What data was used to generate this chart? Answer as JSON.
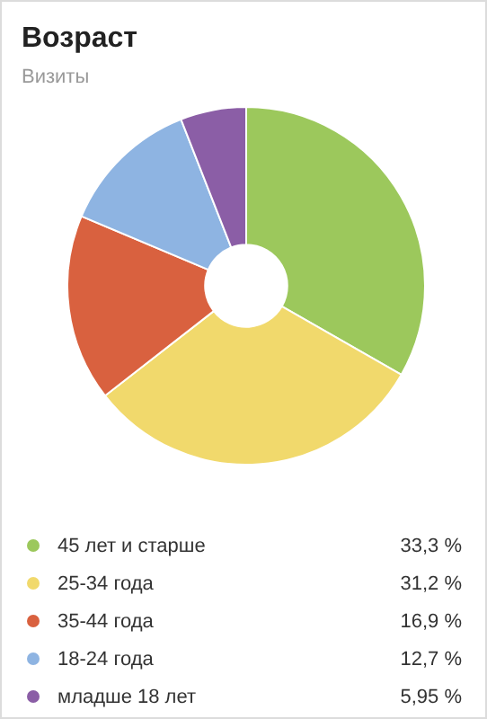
{
  "chart_data": {
    "type": "donut",
    "title": "Возраст",
    "subtitle": "Визиты",
    "categories": [
      "45 лет и старше",
      "25-34 года",
      "35-44 года",
      "18-24 года",
      "младше 18 лет"
    ],
    "values": [
      33.3,
      31.2,
      16.9,
      12.7,
      5.95
    ],
    "colors": [
      "#9cc85c",
      "#f1d96c",
      "#d9613f",
      "#8eb4e2",
      "#8b5ea6"
    ],
    "value_labels": [
      "33,3 %",
      "31,2 %",
      "16,9 %",
      "12,7 %",
      "5,95 %"
    ],
    "legend": "bottom"
  }
}
